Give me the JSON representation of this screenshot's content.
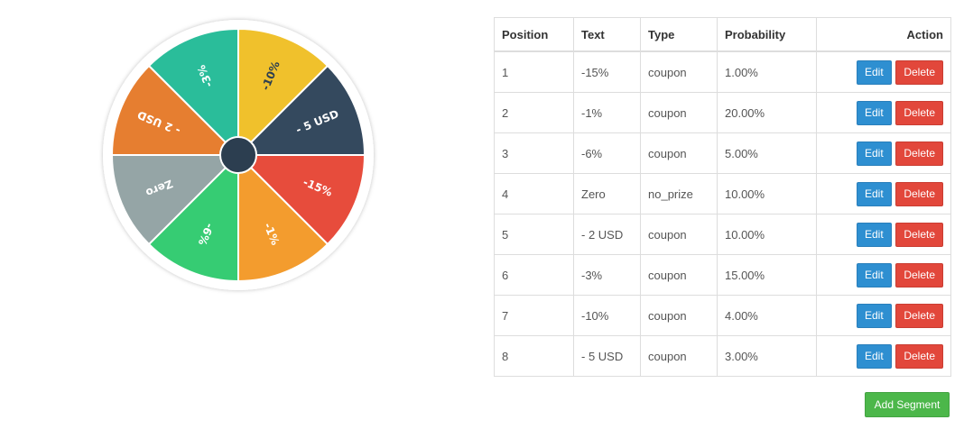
{
  "wheel": {
    "segments": [
      {
        "label": "-10%",
        "color": "#f0c12c",
        "label_color": "#2c3e50"
      },
      {
        "label": "- 5 USD",
        "color": "#34495e",
        "label_color": "#ffffff"
      },
      {
        "label": "-15%",
        "color": "#e74c3c",
        "label_color": "#ffffff"
      },
      {
        "label": "-1%",
        "color": "#f39c2e",
        "label_color": "#ffffff"
      },
      {
        "label": "-6%",
        "color": "#36cc73",
        "label_color": "#ffffff"
      },
      {
        "label": "Zero",
        "color": "#95a5a6",
        "label_color": "#ffffff"
      },
      {
        "label": "- 2 USD",
        "color": "#e67e30",
        "label_color": "#ffffff"
      },
      {
        "label": "-3%",
        "color": "#2abd9a",
        "label_color": "#ffffff"
      }
    ],
    "center_color": "#2c3e50"
  },
  "table": {
    "headers": {
      "position": "Position",
      "text": "Text",
      "type": "Type",
      "probability": "Probability",
      "action": "Action"
    },
    "edit_label": "Edit",
    "delete_label": "Delete",
    "rows": [
      {
        "position": "1",
        "text": "-15%",
        "type": "coupon",
        "probability": "1.00%"
      },
      {
        "position": "2",
        "text": "-1%",
        "type": "coupon",
        "probability": "20.00%"
      },
      {
        "position": "3",
        "text": "-6%",
        "type": "coupon",
        "probability": "5.00%"
      },
      {
        "position": "4",
        "text": "Zero",
        "type": "no_prize",
        "probability": "10.00%"
      },
      {
        "position": "5",
        "text": "- 2 USD",
        "type": "coupon",
        "probability": "10.00%"
      },
      {
        "position": "6",
        "text": "-3%",
        "type": "coupon",
        "probability": "15.00%"
      },
      {
        "position": "7",
        "text": "-10%",
        "type": "coupon",
        "probability": "4.00%"
      },
      {
        "position": "8",
        "text": "- 5 USD",
        "type": "coupon",
        "probability": "3.00%"
      }
    ]
  },
  "add_segment_label": "Add Segment"
}
